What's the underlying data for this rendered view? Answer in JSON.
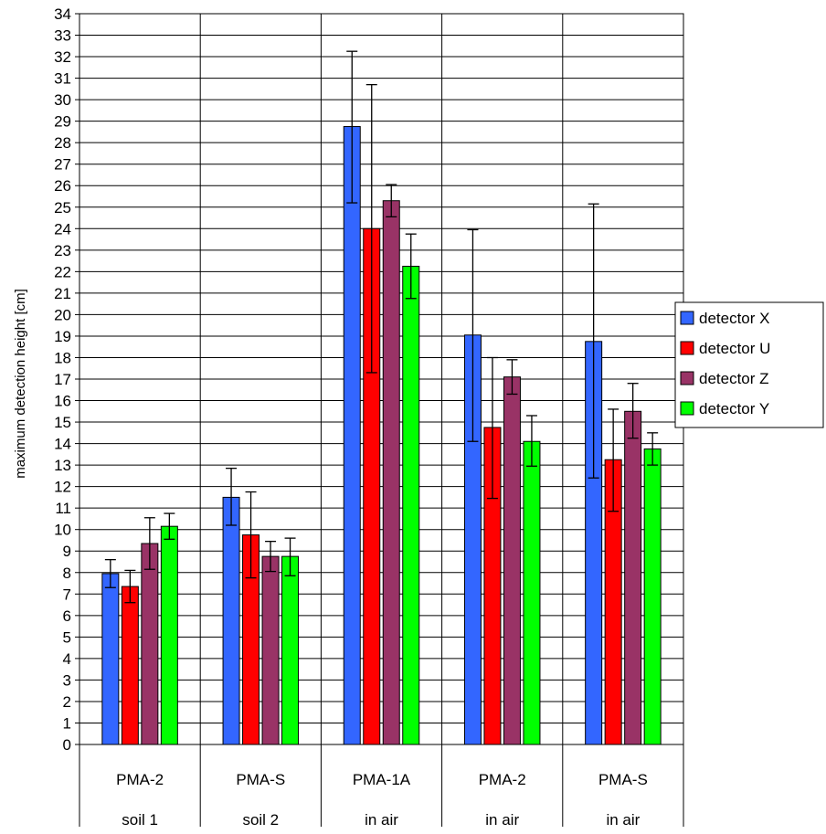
{
  "chart_data": {
    "type": "bar",
    "ylabel": "maximum detection height [cm]",
    "ylim": [
      0,
      34
    ],
    "ytick_step": 1,
    "grid": true,
    "legend_position": "right",
    "categories": [
      {
        "line1": "PMA-2",
        "line2": "soil 1"
      },
      {
        "line1": "PMA-S",
        "line2": "soil 2"
      },
      {
        "line1": "PMA-1A",
        "line2": "in air"
      },
      {
        "line1": "PMA-2",
        "line2": "in air"
      },
      {
        "line1": "PMA-S",
        "line2": "in air"
      }
    ],
    "series": [
      {
        "name": "detector X",
        "color": "#3366ff",
        "values": [
          7.95,
          11.5,
          28.75,
          19.05,
          18.75
        ],
        "err_low": [
          7.3,
          10.2,
          25.2,
          14.1,
          12.4
        ],
        "err_high": [
          8.6,
          12.85,
          32.25,
          23.95,
          25.15
        ]
      },
      {
        "name": "detector U",
        "color": "#ff0000",
        "values": [
          7.35,
          9.75,
          24.0,
          14.75,
          13.25
        ],
        "err_low": [
          6.6,
          7.75,
          17.3,
          11.45,
          10.85
        ],
        "err_high": [
          8.1,
          11.75,
          30.7,
          18.0,
          15.6
        ]
      },
      {
        "name": "detector Z",
        "color": "#993366",
        "values": [
          9.35,
          8.75,
          25.3,
          17.1,
          15.5
        ],
        "err_low": [
          8.15,
          8.05,
          24.55,
          16.3,
          14.25
        ],
        "err_high": [
          10.55,
          9.45,
          26.05,
          17.9,
          16.8
        ]
      },
      {
        "name": "detector Y",
        "color": "#00ff00",
        "values": [
          10.15,
          8.75,
          22.25,
          14.1,
          13.75
        ],
        "err_low": [
          9.55,
          7.85,
          20.75,
          12.95,
          13.0
        ],
        "err_high": [
          10.75,
          9.6,
          23.75,
          15.3,
          14.5
        ]
      }
    ]
  }
}
